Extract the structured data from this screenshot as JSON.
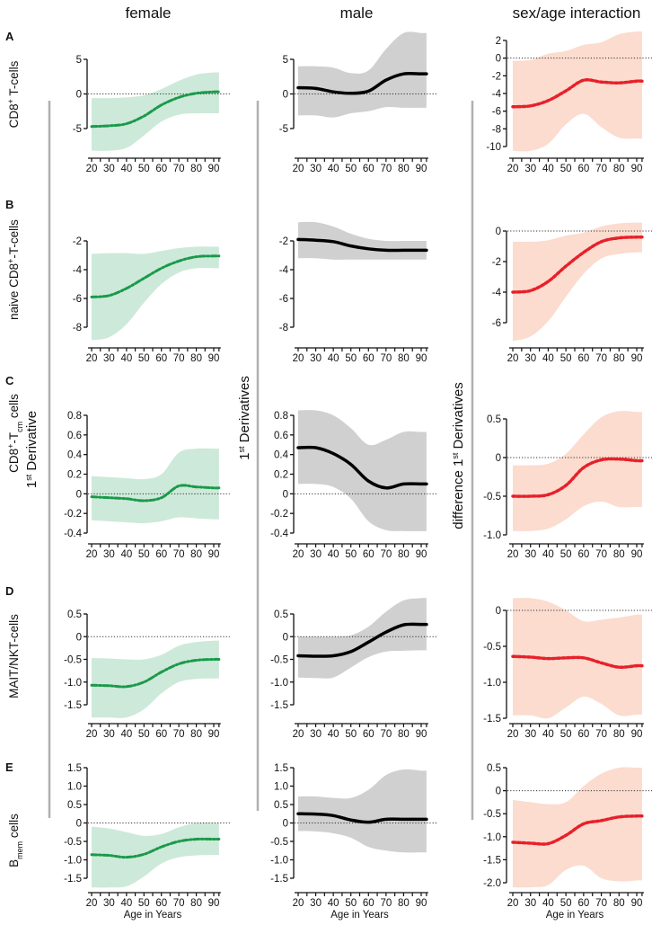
{
  "headers": [
    "female",
    "male",
    "sex/age interaction"
  ],
  "derivative_labels": [
    [
      {
        "t": "1"
      },
      {
        "t": "st",
        "s": "sup"
      },
      {
        "t": " Derivative"
      }
    ],
    [
      {
        "t": "1"
      },
      {
        "t": "st",
        "s": "sup"
      },
      {
        "t": " Derivatives"
      }
    ],
    [
      {
        "t": "difference 1"
      },
      {
        "t": "st",
        "s": "sup"
      },
      {
        "t": " Derivatives"
      }
    ]
  ],
  "colors": {
    "female_line": "#1a9a4a",
    "female_band": "#cde9d9",
    "male_line": "#000000",
    "male_band": "#d0d0d0",
    "interaction_line": "#e8202a",
    "interaction_band": "#fbdccf",
    "divider": "#b0b0b0"
  },
  "chart_data": {
    "type": "line",
    "xlabel": "Age in Years",
    "xticks": [
      20,
      25,
      30,
      35,
      40,
      45,
      50,
      55,
      60,
      65,
      70,
      75,
      80,
      85,
      90
    ],
    "xtick_labels": [
      "20",
      "30",
      "40",
      "50",
      "60",
      "70",
      "80",
      "90"
    ],
    "xtick_label_values": [
      20,
      30,
      40,
      50,
      60,
      70,
      80,
      90
    ],
    "xlim": [
      20,
      93
    ],
    "x": [
      20,
      30,
      40,
      50,
      60,
      70,
      80,
      90,
      93
    ],
    "rows": [
      {
        "letter": "A",
        "label": [
          {
            "t": "CD8"
          },
          {
            "t": "+",
            "s": "sup"
          },
          {
            "t": " T-cells"
          }
        ],
        "panels": [
          {
            "series": "female",
            "yticks": [
              5,
              0,
              -5
            ],
            "ytick_labels": [
              "5",
              "0",
              "-5"
            ],
            "mean": [
              -4.7,
              -4.6,
              -4.3,
              -3.2,
              -1.6,
              -0.5,
              0.1,
              0.3,
              0.3
            ],
            "lower": [
              -8.2,
              -8.2,
              -7.8,
              -6.0,
              -4.0,
              -3.0,
              -2.8,
              -2.8,
              -2.8
            ],
            "upper": [
              -0.6,
              -0.6,
              -0.5,
              -0.2,
              0.7,
              1.9,
              2.8,
              3.1,
              3.1
            ]
          },
          {
            "series": "male",
            "yticks": [
              5,
              0,
              -5
            ],
            "ytick_labels": [
              "5",
              "0",
              "-5"
            ],
            "mean": [
              0.9,
              0.8,
              0.3,
              0.1,
              0.4,
              2.0,
              2.9,
              2.9,
              2.9
            ],
            "lower": [
              -3.1,
              -3.1,
              -3.4,
              -2.8,
              -2.5,
              -1.9,
              -2.0,
              -2.0,
              -2.0
            ],
            "upper": [
              4.0,
              4.0,
              3.8,
              3.0,
              3.4,
              6.5,
              8.8,
              8.8,
              8.8
            ]
          },
          {
            "series": "interaction",
            "yticks": [
              2,
              0,
              -2,
              -4,
              -6,
              -8,
              -10
            ],
            "ytick_labels": [
              "2",
              "0",
              "-2",
              "-4",
              "-6",
              "-8",
              "-10"
            ],
            "mean": [
              -5.5,
              -5.4,
              -4.8,
              -3.7,
              -2.5,
              -2.7,
              -2.8,
              -2.6,
              -2.6
            ],
            "lower": [
              -10.5,
              -10.5,
              -9.7,
              -7.5,
              -6.3,
              -7.8,
              -9.0,
              -9.1,
              -9.1
            ],
            "upper": [
              -0.3,
              -0.2,
              0.5,
              0.8,
              1.5,
              1.8,
              2.7,
              3.0,
              3.0
            ]
          }
        ]
      },
      {
        "letter": "B",
        "label": [
          {
            "t": "naive CD8"
          },
          {
            "t": "+",
            "s": "sup"
          },
          {
            "t": "-T-cells"
          }
        ],
        "panels": [
          {
            "series": "female",
            "yticks": [
              -2,
              -4,
              -6,
              -8
            ],
            "ytick_labels": [
              "-2",
              "-4",
              "-6",
              "-8"
            ],
            "mean": [
              -5.9,
              -5.8,
              -5.3,
              -4.6,
              -3.9,
              -3.4,
              -3.1,
              -3.05,
              -3.05
            ],
            "lower": [
              -8.9,
              -8.7,
              -7.8,
              -6.3,
              -5.0,
              -4.2,
              -3.9,
              -3.9,
              -3.9
            ],
            "upper": [
              -2.9,
              -2.85,
              -2.85,
              -2.9,
              -2.7,
              -2.5,
              -2.4,
              -2.4,
              -2.4
            ]
          },
          {
            "series": "male",
            "yticks": [
              -2,
              -4,
              -6,
              -8
            ],
            "ytick_labels": [
              "-2",
              "-4",
              "-6",
              "-8"
            ],
            "mean": [
              -1.9,
              -1.95,
              -2.05,
              -2.35,
              -2.55,
              -2.65,
              -2.65,
              -2.65,
              -2.65
            ],
            "lower": [
              -3.2,
              -3.2,
              -3.3,
              -3.3,
              -3.3,
              -3.3,
              -3.3,
              -3.3,
              -3.3
            ],
            "upper": [
              -0.7,
              -0.7,
              -1.0,
              -1.5,
              -1.85,
              -2.0,
              -2.0,
              -2.0,
              -2.0
            ]
          },
          {
            "series": "interaction",
            "yticks": [
              0,
              -2,
              -4,
              -6
            ],
            "ytick_labels": [
              "0",
              "-2",
              "-4",
              "-6"
            ],
            "mean": [
              -4.0,
              -3.9,
              -3.3,
              -2.3,
              -1.4,
              -0.7,
              -0.45,
              -0.4,
              -0.4
            ],
            "lower": [
              -7.2,
              -6.9,
              -5.9,
              -4.3,
              -2.8,
              -1.8,
              -1.5,
              -1.4,
              -1.4
            ],
            "upper": [
              -0.7,
              -0.7,
              -0.6,
              -0.3,
              -0.1,
              0.3,
              0.5,
              0.55,
              0.55
            ]
          }
        ]
      },
      {
        "letter": "C",
        "label": [
          {
            "t": "CD8"
          },
          {
            "t": "+",
            "s": "sup"
          },
          {
            "t": "-T"
          },
          {
            "t": "cm",
            "s": "sub"
          },
          {
            "t": " cells"
          }
        ],
        "panels": [
          {
            "series": "female",
            "yticks": [
              0.8,
              0.6,
              0.4,
              0.2,
              0,
              -0.2,
              -0.4
            ],
            "ytick_labels": [
              "0.8",
              "0.6",
              "0.4",
              "0.2",
              "0",
              "-0.2",
              "-0.4"
            ],
            "mean": [
              -0.03,
              -0.04,
              -0.05,
              -0.07,
              -0.04,
              0.08,
              0.07,
              0.06,
              0.06
            ],
            "lower": [
              -0.27,
              -0.28,
              -0.29,
              -0.3,
              -0.28,
              -0.24,
              -0.25,
              -0.26,
              -0.26
            ],
            "upper": [
              0.18,
              0.17,
              0.16,
              0.15,
              0.2,
              0.42,
              0.46,
              0.46,
              0.46
            ]
          },
          {
            "series": "male",
            "yticks": [
              0.8,
              0.6,
              0.4,
              0.2,
              0,
              -0.2,
              -0.4
            ],
            "ytick_labels": [
              "0.8",
              "0.6",
              "0.4",
              "0.2",
              "0",
              "-0.2",
              "-0.4"
            ],
            "mean": [
              0.47,
              0.47,
              0.41,
              0.3,
              0.13,
              0.06,
              0.1,
              0.1,
              0.1
            ],
            "lower": [
              0.1,
              0.1,
              0.07,
              -0.05,
              -0.28,
              -0.37,
              -0.38,
              -0.38,
              -0.38
            ],
            "upper": [
              0.85,
              0.85,
              0.8,
              0.67,
              0.5,
              0.55,
              0.63,
              0.63,
              0.63
            ]
          },
          {
            "series": "interaction",
            "yticks": [
              0.5,
              0,
              -0.5,
              -1.0
            ],
            "ytick_labels": [
              "0.5",
              "0",
              "-0.5",
              "-1.0"
            ],
            "mean": [
              -0.5,
              -0.5,
              -0.48,
              -0.36,
              -0.13,
              -0.03,
              -0.02,
              -0.04,
              -0.04
            ],
            "lower": [
              -0.95,
              -0.95,
              -0.92,
              -0.8,
              -0.63,
              -0.57,
              -0.64,
              -0.64,
              -0.64
            ],
            "upper": [
              -0.1,
              -0.1,
              -0.08,
              0.05,
              0.3,
              0.52,
              0.6,
              0.59,
              0.59
            ]
          }
        ]
      },
      {
        "letter": "D",
        "label": [
          {
            "t": "MAIT/NKT-cells"
          }
        ],
        "panels": [
          {
            "series": "female",
            "yticks": [
              0.5,
              0,
              -0.5,
              -1.0,
              -1.5
            ],
            "ytick_labels": [
              "0.5",
              "0",
              "-0.5",
              "-1.0",
              "-1.5"
            ],
            "mean": [
              -1.07,
              -1.08,
              -1.1,
              -1.0,
              -0.78,
              -0.6,
              -0.52,
              -0.5,
              -0.5
            ],
            "lower": [
              -1.78,
              -1.78,
              -1.78,
              -1.6,
              -1.25,
              -1.0,
              -0.93,
              -0.92,
              -0.92
            ],
            "upper": [
              -0.47,
              -0.48,
              -0.5,
              -0.5,
              -0.4,
              -0.2,
              -0.12,
              -0.09,
              -0.09
            ]
          },
          {
            "series": "male",
            "yticks": [
              0.5,
              0,
              -0.5,
              -1.0,
              -1.5
            ],
            "ytick_labels": [
              "0.5",
              "0",
              "-0.5",
              "-1.0",
              "-1.5"
            ],
            "mean": [
              -0.42,
              -0.43,
              -0.42,
              -0.33,
              -0.12,
              0.1,
              0.26,
              0.27,
              0.27
            ],
            "lower": [
              -0.9,
              -0.91,
              -0.9,
              -0.68,
              -0.45,
              -0.33,
              -0.31,
              -0.3,
              -0.3
            ],
            "upper": [
              0.0,
              0.0,
              0.0,
              0.03,
              0.22,
              0.55,
              0.8,
              0.85,
              0.85
            ]
          },
          {
            "series": "interaction",
            "yticks": [
              0,
              -0.5,
              -1.0,
              -1.5
            ],
            "ytick_labels": [
              "0",
              "-0.5",
              "-1.0",
              "-1.5"
            ],
            "mean": [
              -0.64,
              -0.65,
              -0.67,
              -0.66,
              -0.66,
              -0.73,
              -0.79,
              -0.77,
              -0.77
            ],
            "lower": [
              -1.46,
              -1.46,
              -1.5,
              -1.35,
              -1.2,
              -1.3,
              -1.46,
              -1.45,
              -1.45
            ],
            "upper": [
              0.17,
              0.17,
              0.12,
              0.0,
              -0.15,
              -0.13,
              -0.1,
              -0.06,
              -0.06
            ]
          }
        ]
      },
      {
        "letter": "E",
        "label": [
          {
            "t": "B"
          },
          {
            "t": "mem",
            "s": "sub"
          },
          {
            "t": " cells"
          }
        ],
        "panels": [
          {
            "series": "female",
            "yticks": [
              1.5,
              1.0,
              0.5,
              0,
              -0.5,
              -1.0,
              -1.5
            ],
            "ytick_labels": [
              "1.5",
              "1.0",
              "0.5",
              "0",
              "-0.5",
              "-1.0",
              "-1.5"
            ],
            "mean": [
              -0.86,
              -0.88,
              -0.93,
              -0.85,
              -0.65,
              -0.5,
              -0.44,
              -0.44,
              -0.44
            ],
            "lower": [
              -1.75,
              -1.75,
              -1.72,
              -1.45,
              -1.1,
              -0.93,
              -0.88,
              -0.87,
              -0.87
            ],
            "upper": [
              -0.1,
              -0.15,
              -0.25,
              -0.35,
              -0.3,
              -0.12,
              0.0,
              0.0,
              0.0
            ]
          },
          {
            "series": "male",
            "yticks": [
              1.5,
              1.0,
              0.5,
              0,
              -0.5,
              -1.0,
              -1.5
            ],
            "ytick_labels": [
              "1.5",
              "1.0",
              "0.5",
              "0",
              "-0.5",
              "-1.0",
              "-1.5"
            ],
            "mean": [
              0.25,
              0.24,
              0.2,
              0.08,
              0.02,
              0.1,
              0.1,
              0.1,
              0.1
            ],
            "lower": [
              -0.22,
              -0.23,
              -0.28,
              -0.4,
              -0.65,
              -0.75,
              -0.8,
              -0.8,
              -0.8
            ],
            "upper": [
              0.72,
              0.72,
              0.68,
              0.68,
              0.9,
              1.3,
              1.45,
              1.42,
              1.42
            ]
          },
          {
            "series": "interaction",
            "yticks": [
              0.5,
              0,
              -0.5,
              -1.0,
              -1.5,
              -2.0
            ],
            "ytick_labels": [
              "0.5",
              "0",
              "-0.5",
              "-1.0",
              "-1.5",
              "-2.0"
            ],
            "mean": [
              -1.12,
              -1.14,
              -1.15,
              -0.97,
              -0.72,
              -0.65,
              -0.57,
              -0.55,
              -0.55
            ],
            "lower": [
              -2.1,
              -2.1,
              -2.05,
              -1.72,
              -1.63,
              -1.9,
              -1.97,
              -1.95,
              -1.95
            ],
            "upper": [
              -0.2,
              -0.25,
              -0.29,
              -0.25,
              0.1,
              0.37,
              0.5,
              0.5,
              0.5
            ]
          }
        ]
      }
    ]
  }
}
